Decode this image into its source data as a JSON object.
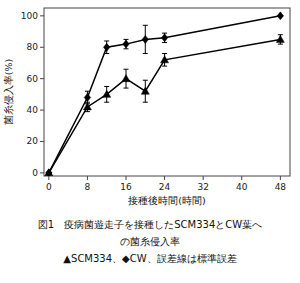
{
  "chart_data": {
    "type": "line",
    "x": [
      0,
      8,
      12,
      16,
      20,
      24,
      48
    ],
    "series": [
      {
        "color": "#000000",
        "marker": "triangle",
        "values": [
          0,
          42,
          50,
          60,
          52,
          72,
          85
        ],
        "errors": [
          0,
          3,
          5,
          6,
          7,
          4,
          3
        ]
      },
      {
        "color": "#000000",
        "marker": "diamond",
        "values": [
          0,
          48,
          80,
          82,
          85,
          86,
          100
        ],
        "errors": [
          0,
          4,
          4,
          3,
          9,
          3,
          0
        ]
      }
    ],
    "x_label": "接種後時間(時間)",
    "y_label": "菌糸侵入率(%)",
    "xlim": [
      -1,
      50
    ],
    "ylim": [
      -2,
      105
    ],
    "xticks": [
      0,
      8,
      16,
      24,
      32,
      40,
      48
    ],
    "yticks": [
      0,
      20,
      40,
      60,
      80,
      100
    ],
    "grid": false,
    "annotations": [
      "図1　疫病菌遊走子を接種したSCM334とCW葉へ",
      "の菌糸侵入率",
      "▲SCM334、◆CW、誤差線は標準誤差"
    ]
  }
}
